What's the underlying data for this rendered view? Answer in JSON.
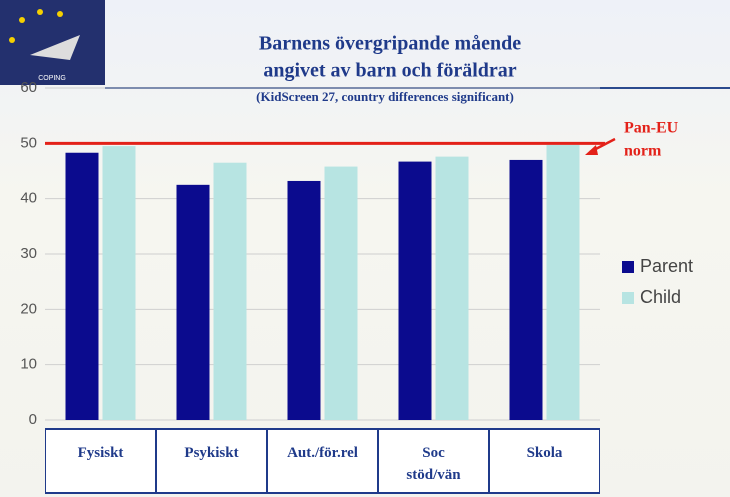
{
  "logo_text": "COPING",
  "chart_data": {
    "type": "bar",
    "title_lines": [
      "Barnens övergripande mående",
      "angivet av barn och föräldrar"
    ],
    "subtitle": "(KidScreen 27, country differences significant)",
    "categories": [
      "Fysiskt",
      "Psykiskt",
      "Aut./för.rel",
      "Soc\nstöd/vän",
      "Skola"
    ],
    "series": [
      {
        "name": "Parent",
        "color": "#0b0b8e",
        "values": [
          48.3,
          42.5,
          43.2,
          46.7,
          47.0
        ]
      },
      {
        "name": "Child",
        "color": "#b7e4e2",
        "values": [
          49.5,
          46.5,
          45.8,
          47.6,
          49.7
        ]
      }
    ],
    "ylim": [
      0,
      60
    ],
    "yticks": [
      0,
      10,
      20,
      30,
      40,
      50,
      60
    ],
    "grid": true,
    "reference_line": {
      "value": 50,
      "color": "#e32119",
      "label_lines": [
        "Pan-EU",
        "norm"
      ]
    },
    "legend": "right"
  }
}
